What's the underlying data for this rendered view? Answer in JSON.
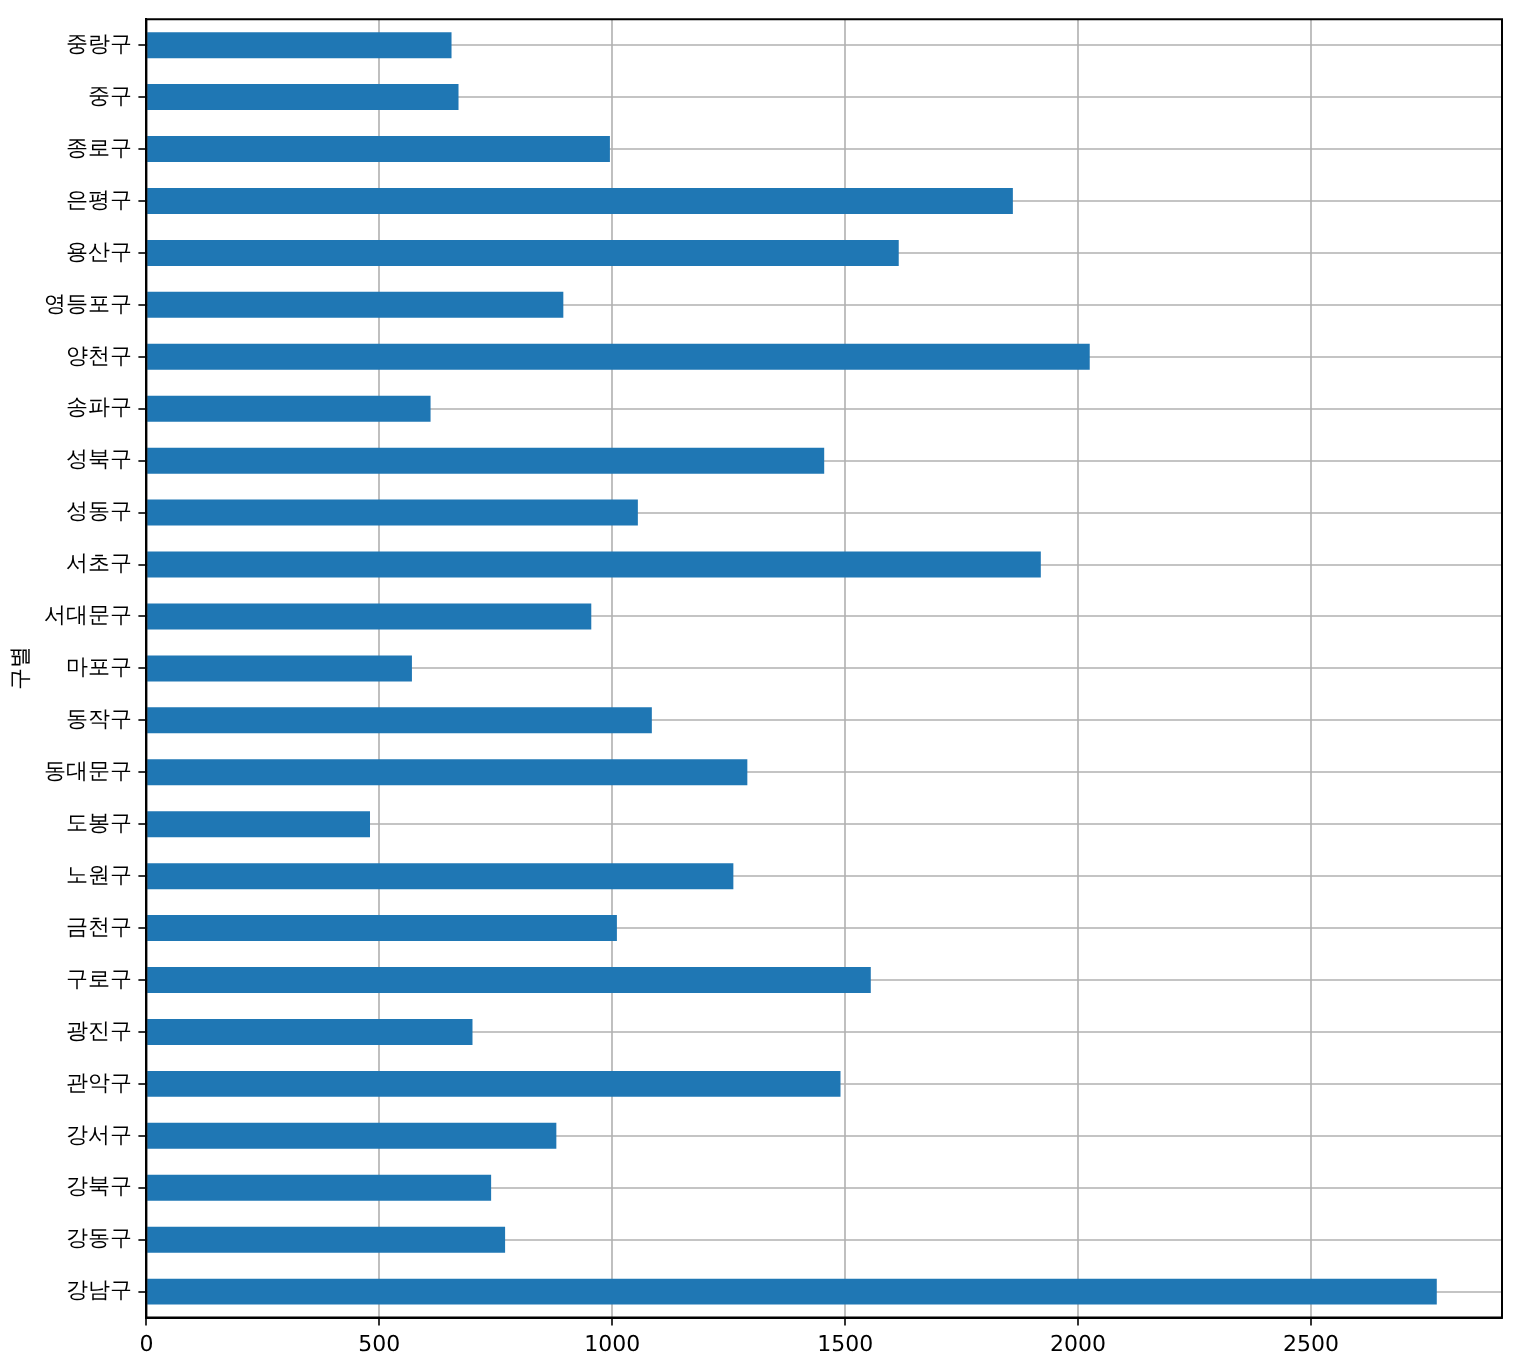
{
  "chart_data": {
    "type": "bar",
    "orientation": "horizontal",
    "ylabel": "구별",
    "categories": [
      "중랑구",
      "중구",
      "종로구",
      "은평구",
      "용산구",
      "영등포구",
      "양천구",
      "송파구",
      "성북구",
      "성동구",
      "서초구",
      "서대문구",
      "마포구",
      "동작구",
      "동대문구",
      "도봉구",
      "노원구",
      "금천구",
      "구로구",
      "광진구",
      "관악구",
      "강서구",
      "강북구",
      "강동구",
      "강남구"
    ],
    "values": [
      655,
      670,
      995,
      1860,
      1615,
      895,
      2025,
      610,
      1455,
      1055,
      1920,
      955,
      570,
      1085,
      1290,
      480,
      1260,
      1010,
      1555,
      700,
      1490,
      880,
      740,
      770,
      2770
    ],
    "color": "#1f77b4",
    "xlim": [
      0,
      2910
    ],
    "xticks": [
      0,
      500,
      1000,
      1500,
      2000,
      2500
    ],
    "grid": true,
    "legend": false
  }
}
